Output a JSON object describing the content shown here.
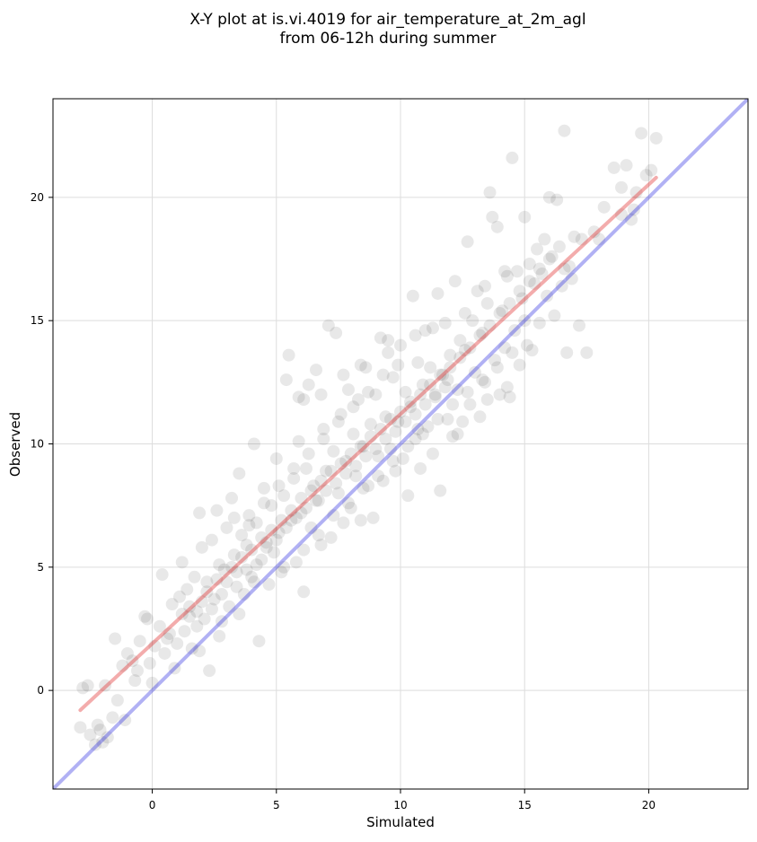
{
  "chart_data": {
    "type": "scatter",
    "title_lines": [
      "X-Y plot at is.vi.4019 for air_temperature_at_2m_agl",
      "from 06-12h during summer"
    ],
    "xlabel": "Simulated",
    "ylabel": "Observed",
    "xlim": [
      -4.0,
      24.0
    ],
    "ylim": [
      -4.0,
      24.0
    ],
    "x_ticks": [
      0,
      5,
      10,
      15,
      20
    ],
    "y_ticks": [
      0,
      5,
      10,
      15,
      20
    ],
    "grid": true,
    "point_color": "#000000",
    "point_alpha": 0.09,
    "points": [
      [
        -2.8,
        0.1
      ],
      [
        -2.6,
        0.2
      ],
      [
        -2.9,
        -1.5
      ],
      [
        -2.5,
        -1.8
      ],
      [
        -2.3,
        -2.2
      ],
      [
        -2.1,
        -1.6
      ],
      [
        -2.0,
        -2.1
      ],
      [
        -1.8,
        -1.9
      ],
      [
        -1.6,
        -1.1
      ],
      [
        -1.4,
        -0.4
      ],
      [
        -1.2,
        1.0
      ],
      [
        -1.0,
        1.5
      ],
      [
        -0.8,
        1.2
      ],
      [
        -0.6,
        0.8
      ],
      [
        -0.5,
        2.0
      ],
      [
        -0.3,
        3.0
      ],
      [
        -0.2,
        2.9
      ],
      [
        -0.1,
        1.1
      ],
      [
        0.1,
        1.8
      ],
      [
        0.3,
        2.6
      ],
      [
        0.4,
        4.7
      ],
      [
        0.5,
        1.5
      ],
      [
        0.7,
        2.3
      ],
      [
        0.8,
        3.5
      ],
      [
        1.0,
        1.9
      ],
      [
        1.1,
        3.8
      ],
      [
        1.2,
        5.2
      ],
      [
        1.3,
        2.4
      ],
      [
        1.4,
        4.1
      ],
      [
        1.5,
        3.0
      ],
      [
        1.6,
        1.7
      ],
      [
        1.7,
        4.6
      ],
      [
        1.8,
        3.2
      ],
      [
        1.9,
        7.2
      ],
      [
        2.0,
        5.8
      ],
      [
        2.1,
        2.9
      ],
      [
        2.2,
        4.4
      ],
      [
        2.3,
        0.8
      ],
      [
        2.4,
        6.1
      ],
      [
        2.5,
        3.7
      ],
      [
        2.6,
        7.3
      ],
      [
        2.7,
        5.1
      ],
      [
        2.8,
        2.8
      ],
      [
        2.9,
        4.9
      ],
      [
        3.0,
        6.6
      ],
      [
        3.1,
        3.4
      ],
      [
        3.2,
        7.8
      ],
      [
        3.3,
        5.5
      ],
      [
        3.4,
        4.2
      ],
      [
        3.5,
        8.8
      ],
      [
        3.6,
        6.3
      ],
      [
        3.7,
        3.9
      ],
      [
        3.8,
        5.9
      ],
      [
        3.9,
        7.1
      ],
      [
        4.0,
        4.6
      ],
      [
        4.1,
        10.0
      ],
      [
        4.2,
        6.8
      ],
      [
        4.3,
        2.0
      ],
      [
        4.4,
        5.3
      ],
      [
        4.5,
        8.2
      ],
      [
        4.6,
        6.0
      ],
      [
        4.7,
        4.3
      ],
      [
        4.8,
        7.5
      ],
      [
        4.9,
        5.6
      ],
      [
        5.0,
        9.4
      ],
      [
        5.1,
        6.4
      ],
      [
        5.2,
        4.8
      ],
      [
        5.3,
        7.9
      ],
      [
        5.4,
        12.6
      ],
      [
        5.5,
        13.6
      ],
      [
        5.6,
        6.9
      ],
      [
        5.7,
        8.6
      ],
      [
        5.8,
        5.2
      ],
      [
        5.9,
        10.1
      ],
      [
        6.0,
        7.2
      ],
      [
        6.1,
        4.0
      ],
      [
        6.2,
        9.0
      ],
      [
        6.3,
        12.4
      ],
      [
        6.4,
        6.6
      ],
      [
        6.5,
        8.3
      ],
      [
        6.6,
        13.0
      ],
      [
        6.7,
        7.7
      ],
      [
        6.8,
        5.9
      ],
      [
        6.9,
        10.6
      ],
      [
        7.0,
        8.9
      ],
      [
        7.1,
        14.8
      ],
      [
        7.2,
        6.2
      ],
      [
        7.3,
        9.7
      ],
      [
        7.4,
        14.5
      ],
      [
        7.5,
        8.0
      ],
      [
        7.6,
        11.2
      ],
      [
        7.7,
        6.8
      ],
      [
        7.8,
        9.3
      ],
      [
        7.9,
        12.2
      ],
      [
        8.0,
        7.4
      ],
      [
        8.1,
        10.4
      ],
      [
        8.2,
        8.7
      ],
      [
        8.3,
        11.8
      ],
      [
        8.4,
        6.9
      ],
      [
        8.5,
        9.9
      ],
      [
        8.6,
        13.1
      ],
      [
        8.7,
        8.3
      ],
      [
        8.8,
        10.8
      ],
      [
        8.9,
        7.0
      ],
      [
        9.0,
        12.0
      ],
      [
        9.1,
        9.5
      ],
      [
        9.2,
        14.3
      ],
      [
        9.3,
        8.5
      ],
      [
        9.4,
        11.1
      ],
      [
        9.5,
        13.7
      ],
      [
        9.6,
        9.8
      ],
      [
        9.7,
        12.7
      ],
      [
        9.8,
        8.9
      ],
      [
        9.9,
        10.9
      ],
      [
        10.0,
        14.0
      ],
      [
        10.1,
        9.4
      ],
      [
        10.2,
        12.1
      ],
      [
        10.3,
        7.9
      ],
      [
        10.4,
        11.5
      ],
      [
        10.5,
        16.0
      ],
      [
        10.6,
        10.2
      ],
      [
        10.7,
        13.3
      ],
      [
        10.8,
        9.0
      ],
      [
        10.9,
        12.4
      ],
      [
        11.0,
        14.6
      ],
      [
        11.1,
        10.7
      ],
      [
        11.2,
        13.1
      ],
      [
        11.3,
        9.6
      ],
      [
        11.4,
        11.9
      ],
      [
        11.5,
        16.1
      ],
      [
        11.6,
        8.1
      ],
      [
        11.7,
        12.8
      ],
      [
        11.8,
        14.9
      ],
      [
        11.9,
        11.0
      ],
      [
        12.0,
        13.6
      ],
      [
        12.1,
        10.3
      ],
      [
        12.2,
        16.6
      ],
      [
        12.3,
        12.2
      ],
      [
        12.4,
        14.2
      ],
      [
        12.5,
        10.9
      ],
      [
        12.6,
        13.8
      ],
      [
        12.7,
        18.2
      ],
      [
        12.8,
        11.6
      ],
      [
        12.9,
        15.0
      ],
      [
        13.0,
        12.9
      ],
      [
        13.1,
        16.2
      ],
      [
        13.2,
        11.1
      ],
      [
        13.3,
        14.5
      ],
      [
        13.4,
        12.5
      ],
      [
        13.5,
        15.7
      ],
      [
        13.6,
        20.2
      ],
      [
        13.7,
        19.2
      ],
      [
        13.8,
        13.4
      ],
      [
        13.9,
        18.8
      ],
      [
        14.0,
        12.0
      ],
      [
        14.1,
        15.4
      ],
      [
        14.2,
        13.9
      ],
      [
        14.3,
        16.8
      ],
      [
        14.4,
        11.9
      ],
      [
        14.5,
        21.6
      ],
      [
        14.6,
        14.6
      ],
      [
        14.7,
        17.0
      ],
      [
        14.8,
        13.2
      ],
      [
        14.9,
        15.9
      ],
      [
        15.0,
        19.2
      ],
      [
        15.1,
        14.0
      ],
      [
        15.2,
        17.3
      ],
      [
        15.3,
        13.8
      ],
      [
        15.4,
        16.5
      ],
      [
        15.5,
        17.9
      ],
      [
        15.6,
        14.9
      ],
      [
        15.8,
        18.3
      ],
      [
        15.9,
        16.0
      ],
      [
        16.0,
        20.0
      ],
      [
        16.1,
        17.6
      ],
      [
        16.2,
        15.2
      ],
      [
        16.3,
        19.9
      ],
      [
        16.4,
        18.0
      ],
      [
        16.5,
        16.4
      ],
      [
        16.6,
        22.7
      ],
      [
        16.7,
        13.7
      ],
      [
        16.8,
        17.2
      ],
      [
        17.0,
        18.4
      ],
      [
        17.2,
        14.8
      ],
      [
        17.5,
        13.7
      ],
      [
        17.8,
        18.6
      ],
      [
        18.2,
        19.6
      ],
      [
        18.6,
        21.2
      ],
      [
        18.9,
        20.4
      ],
      [
        19.1,
        21.3
      ],
      [
        19.3,
        19.1
      ],
      [
        19.5,
        20.2
      ],
      [
        19.7,
        22.6
      ],
      [
        19.9,
        20.9
      ],
      [
        20.1,
        21.1
      ],
      [
        20.3,
        22.4
      ],
      [
        1.2,
        3.1
      ],
      [
        1.5,
        3.4
      ],
      [
        1.8,
        2.6
      ],
      [
        2.0,
        3.6
      ],
      [
        2.2,
        4.0
      ],
      [
        2.4,
        3.3
      ],
      [
        2.6,
        4.5
      ],
      [
        2.8,
        3.9
      ],
      [
        3.0,
        4.4
      ],
      [
        3.2,
        5.0
      ],
      [
        3.4,
        4.8
      ],
      [
        3.6,
        5.4
      ],
      [
        3.8,
        4.9
      ],
      [
        4.0,
        5.7
      ],
      [
        4.2,
        5.1
      ],
      [
        4.4,
        6.2
      ],
      [
        4.6,
        5.8
      ],
      [
        4.8,
        6.5
      ],
      [
        5.0,
        6.1
      ],
      [
        5.2,
        6.9
      ],
      [
        5.4,
        6.6
      ],
      [
        5.6,
        7.3
      ],
      [
        5.8,
        7.0
      ],
      [
        6.0,
        7.8
      ],
      [
        6.2,
        7.4
      ],
      [
        6.4,
        8.1
      ],
      [
        6.6,
        7.7
      ],
      [
        6.8,
        8.5
      ],
      [
        7.0,
        8.1
      ],
      [
        7.2,
        8.9
      ],
      [
        7.4,
        8.4
      ],
      [
        7.6,
        9.2
      ],
      [
        7.8,
        8.8
      ],
      [
        8.0,
        9.6
      ],
      [
        8.2,
        9.1
      ],
      [
        8.4,
        9.9
      ],
      [
        8.6,
        9.5
      ],
      [
        8.8,
        10.3
      ],
      [
        9.0,
        9.8
      ],
      [
        9.2,
        10.6
      ],
      [
        9.4,
        10.2
      ],
      [
        9.6,
        11.0
      ],
      [
        9.8,
        10.5
      ],
      [
        10.0,
        11.3
      ],
      [
        10.2,
        10.9
      ],
      [
        10.4,
        11.7
      ],
      [
        10.6,
        11.2
      ],
      [
        10.8,
        12.0
      ],
      [
        11.0,
        11.6
      ],
      [
        11.2,
        12.4
      ],
      [
        11.4,
        12.0
      ],
      [
        11.6,
        12.8
      ],
      [
        11.8,
        12.3
      ],
      [
        12.0,
        13.1
      ],
      [
        12.4,
        13.5
      ],
      [
        12.8,
        13.9
      ],
      [
        13.2,
        14.4
      ],
      [
        13.6,
        14.8
      ],
      [
        14.0,
        15.3
      ],
      [
        14.4,
        15.7
      ],
      [
        14.8,
        16.2
      ],
      [
        15.2,
        16.6
      ],
      [
        15.6,
        17.1
      ],
      [
        16.0,
        17.5
      ],
      [
        3.3,
        7.0
      ],
      [
        3.9,
        6.7
      ],
      [
        4.5,
        7.6
      ],
      [
        5.1,
        8.3
      ],
      [
        5.7,
        9.0
      ],
      [
        6.3,
        9.6
      ],
      [
        6.9,
        10.2
      ],
      [
        7.5,
        10.9
      ],
      [
        8.1,
        11.5
      ],
      [
        8.7,
        12.1
      ],
      [
        9.3,
        12.8
      ],
      [
        9.9,
        13.2
      ],
      [
        4.1,
        4.4
      ],
      [
        5.3,
        5.0
      ],
      [
        6.1,
        5.7
      ],
      [
        6.7,
        6.3
      ],
      [
        7.3,
        7.1
      ],
      [
        7.9,
        7.6
      ],
      [
        8.5,
        8.2
      ],
      [
        9.1,
        8.7
      ],
      [
        9.7,
        9.3
      ],
      [
        10.3,
        9.9
      ],
      [
        10.9,
        10.4
      ],
      [
        11.5,
        11.0
      ],
      [
        12.1,
        11.6
      ],
      [
        12.7,
        12.1
      ],
      [
        13.3,
        12.6
      ],
      [
        13.9,
        13.1
      ],
      [
        14.5,
        13.7
      ],
      [
        0.6,
        2.1
      ],
      [
        0.9,
        0.9
      ],
      [
        1.9,
        1.6
      ],
      [
        2.7,
        2.2
      ],
      [
        3.5,
        3.1
      ],
      [
        -1.1,
        -1.2
      ],
      [
        -0.7,
        0.4
      ],
      [
        0.0,
        0.3
      ],
      [
        -1.9,
        0.2
      ],
      [
        -2.2,
        -1.4
      ],
      [
        -1.5,
        2.1
      ],
      [
        6.1,
        11.8
      ],
      [
        5.9,
        11.9
      ],
      [
        6.8,
        12.0
      ],
      [
        7.7,
        12.8
      ],
      [
        8.4,
        13.2
      ],
      [
        9.5,
        14.2
      ],
      [
        10.6,
        14.4
      ],
      [
        11.3,
        14.7
      ],
      [
        12.6,
        15.3
      ],
      [
        13.4,
        16.4
      ],
      [
        14.2,
        17.0
      ],
      [
        10.7,
        10.6
      ],
      [
        11.9,
        12.6
      ],
      [
        12.3,
        10.4
      ],
      [
        13.5,
        11.8
      ],
      [
        14.3,
        12.3
      ],
      [
        15.0,
        15.0
      ],
      [
        15.7,
        16.9
      ],
      [
        16.6,
        17.1
      ],
      [
        17.3,
        18.3
      ],
      [
        18.0,
        18.3
      ],
      [
        18.9,
        19.3
      ],
      [
        19.4,
        19.5
      ],
      [
        16.9,
        16.7
      ]
    ],
    "series": [
      {
        "color": "#e03030",
        "alpha": 0.4,
        "x": [
          -2.9,
          20.3
        ],
        "y": [
          -0.8,
          20.8
        ]
      },
      {
        "color": "#2020e0",
        "alpha": 0.35,
        "x": [
          -4.0,
          24.0
        ],
        "y": [
          -4.0,
          24.0
        ]
      }
    ]
  }
}
